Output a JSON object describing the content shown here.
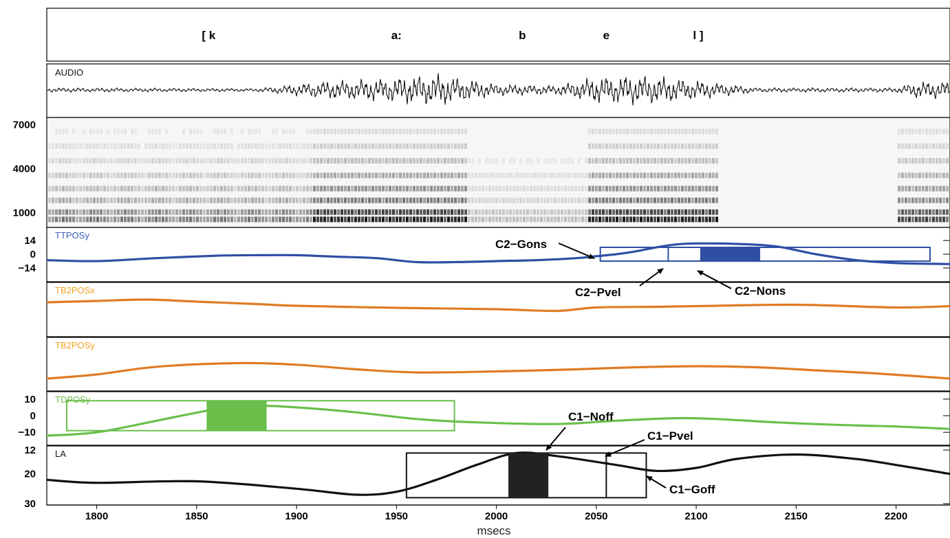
{
  "chart_data": {
    "type": "line",
    "x_axis": {
      "label": "msecs",
      "range": [
        1775,
        2227
      ],
      "ticks": [
        "1800",
        "1850",
        "1900",
        "1950",
        "2000",
        "2050",
        "2100",
        "2150",
        "2200"
      ],
      "tick_values": [
        1800,
        1850,
        1900,
        1950,
        2000,
        2050,
        2100,
        2150,
        2200
      ]
    },
    "segments": [
      {
        "label": "[ k",
        "x": 1856
      },
      {
        "label": "a:",
        "x": 1950
      },
      {
        "label": "b",
        "x": 2013
      },
      {
        "label": "e",
        "x": 2055
      },
      {
        "label": "l ]",
        "x": 2101
      }
    ],
    "audio": {
      "label": "AUDIO"
    },
    "spectrogram": {
      "ticks": [
        "7000",
        "4000",
        "1000"
      ],
      "tick_values": [
        7000,
        4000,
        1000
      ],
      "ylim": [
        0,
        7500
      ]
    },
    "tracks": [
      {
        "key": "ttposy",
        "label": "TTPOSy",
        "color": "#2e4fa3",
        "label_color": "#3a5fb8",
        "ylim": [
          -14,
          14
        ],
        "ticks": [
          "14",
          "0",
          "−14"
        ],
        "tick_values": [
          14,
          0,
          -14
        ],
        "x": [
          1775,
          1800,
          1830,
          1860,
          1880,
          1900,
          1920,
          1940,
          1960,
          1980,
          2000,
          2020,
          2040,
          2050,
          2060,
          2070,
          2080,
          2090,
          2100,
          2120,
          2140,
          2160,
          2180,
          2200,
          2227
        ],
        "y": [
          -6,
          -7,
          -4,
          -1.5,
          -1,
          -1,
          -2.5,
          -4,
          -8,
          -8,
          -7,
          -6,
          -4,
          -2,
          0,
          3,
          7,
          10,
          11,
          10.5,
          8,
          0,
          -6,
          -9,
          -10
        ]
      },
      {
        "key": "tb2posx",
        "label": "TB2POSx",
        "color": "#e07b24",
        "label_color": "#f0a020",
        "ylim": [
          -3,
          3
        ],
        "ticks": [],
        "tick_values": [],
        "x": [
          1775,
          1800,
          1825,
          1850,
          1880,
          1900,
          1950,
          2000,
          2030,
          2050,
          2080,
          2100,
          2150,
          2200,
          2227
        ],
        "y": [
          1,
          1.4,
          1.8,
          1.2,
          0.5,
          0,
          -0.6,
          -1,
          -1.5,
          -0.5,
          -0.3,
          -0.1,
          0.3,
          -0.5,
          -0.1
        ]
      },
      {
        "key": "tb2posy",
        "label": "TB2POSy",
        "color": "#e07b24",
        "label_color": "#f0a020",
        "ylim": [
          -3,
          3
        ],
        "ticks": [],
        "tick_values": [],
        "x": [
          1775,
          1800,
          1830,
          1870,
          1900,
          1930,
          1960,
          2000,
          2040,
          2070,
          2100,
          2130,
          2160,
          2190,
          2227
        ],
        "y": [
          -1.8,
          -1,
          0.5,
          1.2,
          0.9,
          0,
          -0.6,
          -0.4,
          0,
          0.4,
          0.6,
          0.4,
          -0.2,
          -0.8,
          -1.8
        ]
      },
      {
        "key": "tdposy",
        "label": "TDPOSy",
        "color": "#6abf4b",
        "label_color": "#6abf4b",
        "ylim": [
          -12,
          12
        ],
        "ticks": [
          "10",
          "0",
          "−10"
        ],
        "tick_values": [
          10,
          0,
          -10
        ],
        "x": [
          1775,
          1800,
          1830,
          1860,
          1880,
          1900,
          1930,
          1960,
          1990,
          2030,
          2060,
          2090,
          2110,
          2140,
          2170,
          2200,
          2227
        ],
        "y": [
          -12,
          -10,
          -3,
          4,
          6,
          5,
          2,
          -2,
          -4,
          -5,
          -3,
          -1.5,
          -2,
          -4,
          -5.5,
          -6.5,
          -8
        ]
      },
      {
        "key": "la",
        "label": "LA",
        "color": "#111111",
        "label_color": "#111111",
        "ylim": [
          30,
          12
        ],
        "ticks": [
          "12",
          "20",
          "30"
        ],
        "tick_values": [
          12,
          20,
          30
        ],
        "x": [
          1775,
          1800,
          1850,
          1900,
          1930,
          1950,
          1970,
          1990,
          2010,
          2030,
          2060,
          2080,
          2100,
          2120,
          2150,
          2180,
          2200,
          2227
        ],
        "y": [
          22,
          23,
          22.5,
          25,
          27,
          26,
          22,
          17,
          13,
          14,
          17,
          19,
          18,
          15,
          13.5,
          15,
          17,
          20
        ]
      }
    ],
    "gesture_boxes": [
      {
        "track": "ttposy",
        "x0": 2052,
        "x1": 2217,
        "plateau": [
          2102,
          2132
        ],
        "vel_line": 2086,
        "color": "#2e4fa3",
        "fill": "#2e4fa3"
      },
      {
        "track": "tdposy",
        "x0": 1785,
        "x1": 1979,
        "plateau": [
          1855,
          1885
        ],
        "color": "#6abf4b",
        "fill": "#6abf4b"
      },
      {
        "track": "la",
        "x0": 1955,
        "x1": 2075,
        "plateau": [
          2006,
          2026
        ],
        "vel_line": 2055,
        "color": "#111111",
        "fill": "#222222"
      }
    ],
    "annotations": [
      {
        "text": "C2−Gons",
        "track": "ttposy"
      },
      {
        "text": "C2−Pvel",
        "track": "ttposy"
      },
      {
        "text": "C2−Nons",
        "track": "ttposy"
      },
      {
        "text": "C1−Noff",
        "track": "la"
      },
      {
        "text": "C1−Pvel",
        "track": "la"
      },
      {
        "text": "C1−Goff",
        "track": "la"
      }
    ]
  }
}
